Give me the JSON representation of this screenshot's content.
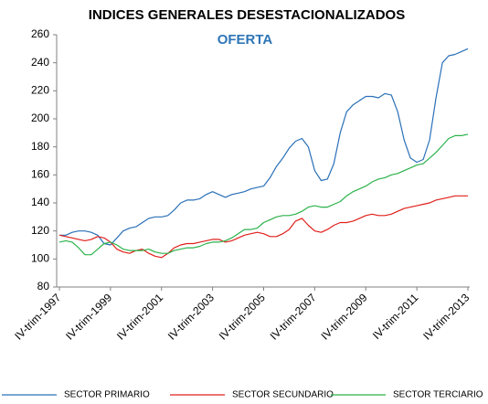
{
  "chart_data": {
    "type": "line",
    "title": "INDICES GENERALES DESESTACIONALIZADOS",
    "subtitle": "OFERTA",
    "categories": [
      "IV-trim-1997",
      null,
      null,
      null,
      null,
      null,
      null,
      null,
      "IV-trim-1999",
      null,
      null,
      null,
      null,
      null,
      null,
      null,
      "IV-trim-2001",
      null,
      null,
      null,
      null,
      null,
      null,
      null,
      "IV-trim-2003",
      null,
      null,
      null,
      null,
      null,
      null,
      null,
      "IV-trim-2005",
      null,
      null,
      null,
      null,
      null,
      null,
      null,
      "IV-trim-2007",
      null,
      null,
      null,
      null,
      null,
      null,
      null,
      "IV-trim-2009",
      null,
      null,
      null,
      null,
      null,
      null,
      null,
      "IV-trim-2011",
      null,
      null,
      null,
      null,
      null,
      null,
      null,
      "IV-trim-2013"
    ],
    "series": [
      {
        "name": "SECTOR PRIMARIO",
        "color": "#2a70b8",
        "values": [
          117,
          117,
          119,
          120,
          120,
          119,
          117,
          111,
          110,
          115,
          120,
          122,
          123,
          126,
          129,
          130,
          130,
          131,
          135,
          140,
          142,
          142,
          143,
          146,
          148,
          146,
          144,
          146,
          147,
          148,
          150,
          151,
          152,
          158,
          166,
          172,
          179,
          184,
          186,
          180,
          163,
          156,
          157,
          168,
          190,
          205,
          210,
          213,
          216,
          216,
          215,
          218,
          217,
          205,
          185,
          172,
          169,
          171,
          185,
          215,
          240,
          245,
          246,
          248,
          250
        ]
      },
      {
        "name": "SECTOR SECUNDARIO",
        "color": "#e0201b",
        "values": [
          117,
          116,
          115,
          114,
          113,
          114,
          116,
          115,
          112,
          107,
          105,
          104,
          106,
          107,
          104,
          102,
          101,
          104,
          108,
          110,
          111,
          111,
          112,
          113,
          114,
          114,
          112,
          113,
          115,
          117,
          118,
          119,
          118,
          116,
          116,
          118,
          121,
          127,
          129,
          124,
          120,
          119,
          121,
          124,
          126,
          126,
          127,
          129,
          131,
          132,
          131,
          131,
          132,
          134,
          136,
          137,
          138,
          139,
          140,
          142,
          143,
          144,
          145,
          145,
          145
        ]
      },
      {
        "name": "SECTOR TERCIARIO",
        "color": "#2bb24a",
        "values": [
          112,
          113,
          112,
          108,
          103,
          103,
          107,
          111,
          112,
          110,
          107,
          106,
          106,
          106,
          107,
          105,
          104,
          104,
          106,
          107,
          108,
          108,
          109,
          111,
          112,
          112,
          113,
          115,
          118,
          121,
          121,
          122,
          126,
          128,
          130,
          131,
          131,
          132,
          134,
          137,
          138,
          137,
          137,
          139,
          141,
          145,
          148,
          150,
          152,
          155,
          157,
          158,
          160,
          161,
          163,
          165,
          167,
          168,
          172,
          176,
          181,
          186,
          188,
          188,
          189
        ]
      }
    ],
    "ylim": [
      80,
      260
    ],
    "yticks": [
      80,
      100,
      120,
      140,
      160,
      180,
      200,
      220,
      240,
      260
    ],
    "grid": false,
    "legend": "bottom"
  }
}
